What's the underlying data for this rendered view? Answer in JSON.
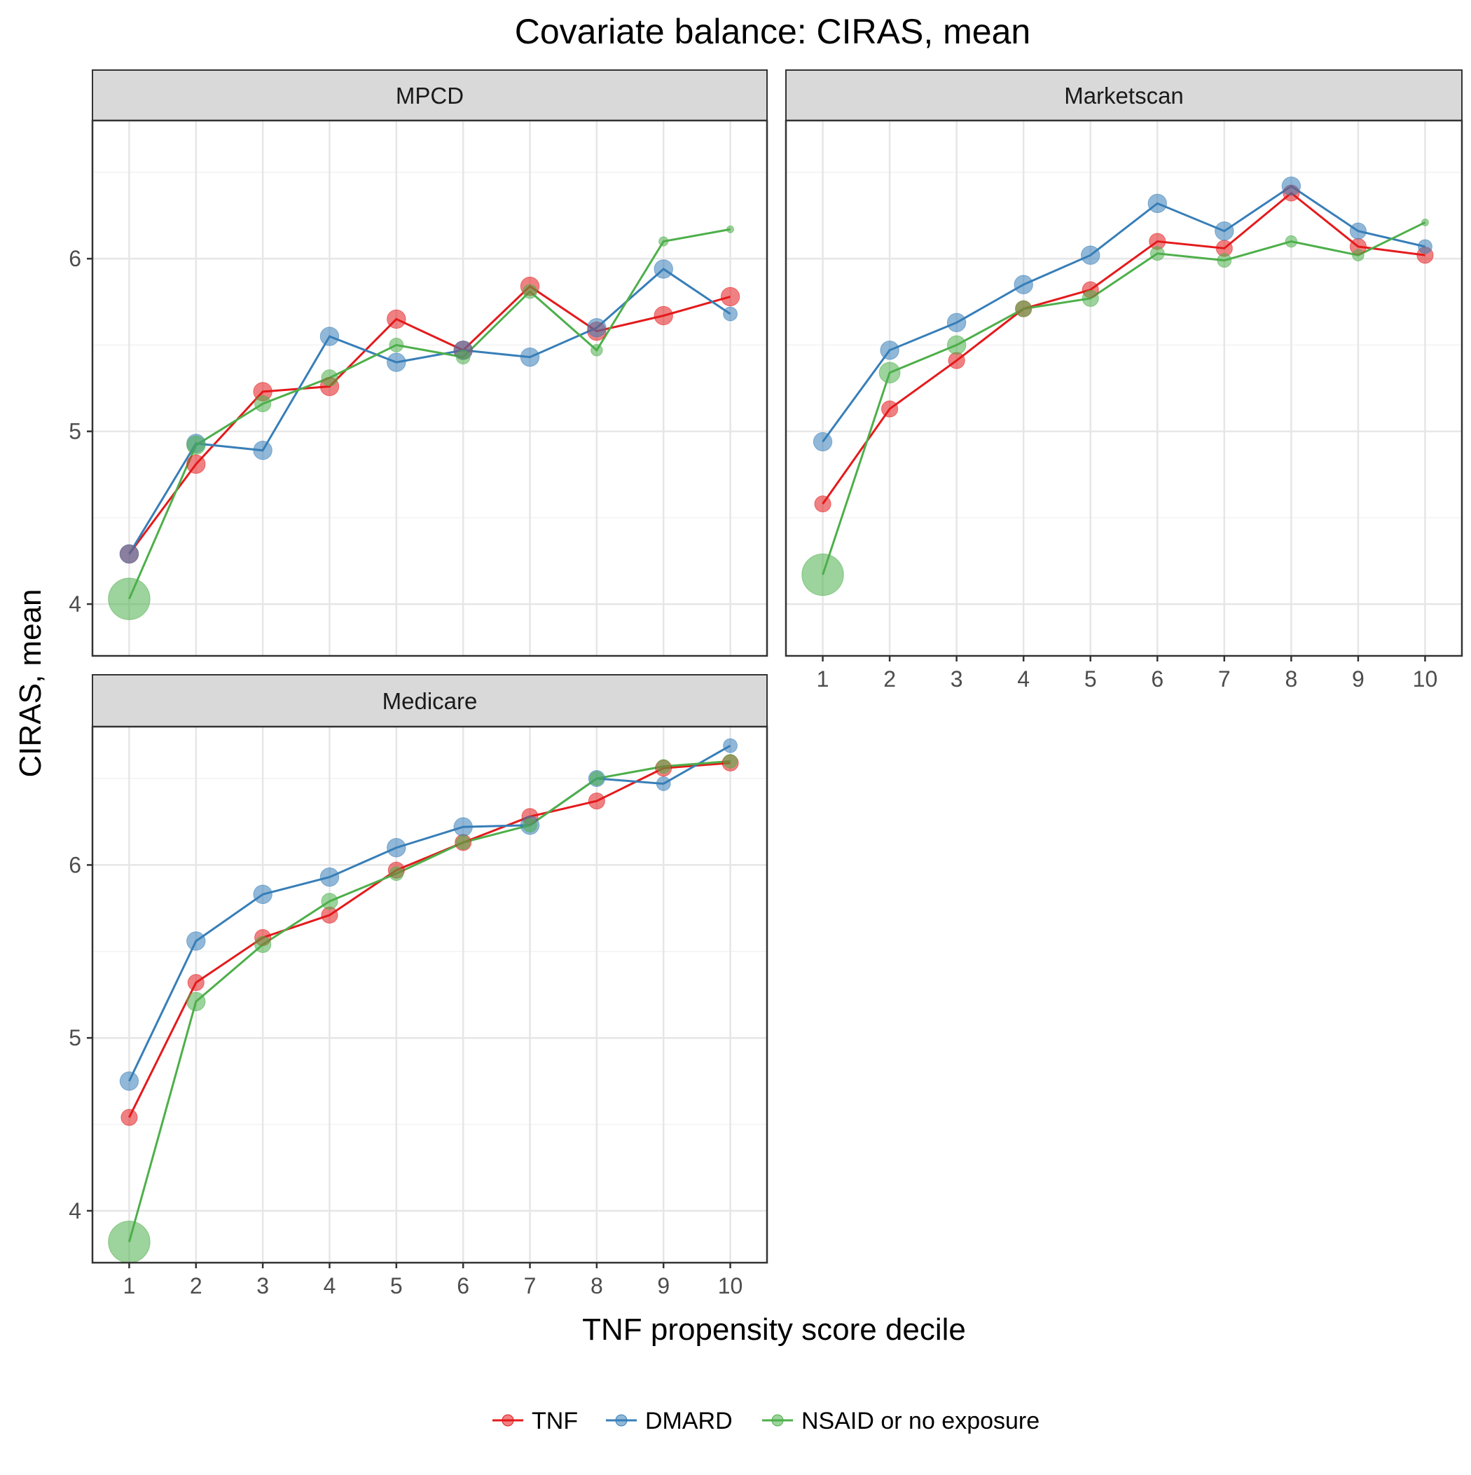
{
  "chart_data": {
    "type": "line",
    "title": "Covariate balance: CIRAS, mean",
    "xlabel": "TNF propensity score decile",
    "ylabel": "CIRAS, mean",
    "x": [
      1,
      2,
      3,
      4,
      5,
      6,
      7,
      8,
      9,
      10
    ],
    "x_tick_labels": [
      "1",
      "2",
      "3",
      "4",
      "5",
      "6",
      "7",
      "8",
      "9",
      "10"
    ],
    "ylim": [
      3.7,
      6.8
    ],
    "y_ticks": [
      4,
      5,
      6
    ],
    "y_tick_labels": [
      "4",
      "5",
      "6"
    ],
    "grid": true,
    "legend_position": "bottom",
    "series_colors": {
      "TNF": "#e41a1c",
      "DMARD": "#377eb8",
      "NSAID or no exposure": "#4daf4a"
    },
    "legend": [
      "TNF",
      "DMARD",
      "NSAID or no exposure"
    ],
    "panels": [
      {
        "label": "MPCD",
        "series": [
          {
            "name": "TNF",
            "values": [
              4.29,
              4.81,
              5.23,
              5.26,
              5.65,
              5.47,
              5.84,
              5.58,
              5.67,
              5.78
            ],
            "sizes": [
              4,
              4,
              4,
              4,
              4,
              4,
              4,
              4,
              4,
              4
            ]
          },
          {
            "name": "DMARD",
            "values": [
              4.29,
              4.93,
              4.89,
              5.55,
              5.4,
              5.47,
              5.43,
              5.6,
              5.94,
              5.68
            ],
            "sizes": [
              4,
              4,
              4,
              4,
              4,
              4,
              4,
              4,
              4,
              3
            ]
          },
          {
            "name": "NSAID or no exposure",
            "values": [
              4.03,
              4.92,
              5.16,
              5.31,
              5.5,
              5.43,
              5.81,
              5.47,
              6.1,
              6.17
            ],
            "sizes": [
              9,
              4,
              3.5,
              3.5,
              3,
              3,
              3,
              2.5,
              2,
              1.5
            ]
          }
        ]
      },
      {
        "label": "Marketscan",
        "series": [
          {
            "name": "TNF",
            "values": [
              4.58,
              5.13,
              5.41,
              5.71,
              5.82,
              6.1,
              6.06,
              6.38,
              6.07,
              6.02
            ],
            "sizes": [
              3.5,
              3.5,
              3.5,
              3.5,
              3.5,
              3.5,
              3.5,
              3.5,
              3.5,
              3.5
            ]
          },
          {
            "name": "DMARD",
            "values": [
              4.94,
              5.47,
              5.63,
              5.85,
              6.02,
              6.32,
              6.16,
              6.42,
              6.16,
              6.07
            ],
            "sizes": [
              4,
              4,
              4,
              4,
              4,
              4,
              4,
              4,
              3.5,
              3
            ]
          },
          {
            "name": "NSAID or no exposure",
            "values": [
              4.17,
              5.34,
              5.5,
              5.71,
              5.77,
              6.03,
              5.99,
              6.1,
              6.02,
              6.21
            ],
            "sizes": [
              9,
              4.5,
              4,
              3.5,
              3.5,
              3,
              3,
              2.5,
              2.5,
              1.5
            ]
          }
        ]
      },
      {
        "label": "Medicare",
        "series": [
          {
            "name": "TNF",
            "values": [
              4.54,
              5.32,
              5.58,
              5.71,
              5.97,
              6.13,
              6.28,
              6.37,
              6.56,
              6.59
            ],
            "sizes": [
              3.5,
              3.5,
              3.5,
              3.5,
              3.5,
              3.5,
              3.5,
              3.5,
              3.5,
              3.5
            ]
          },
          {
            "name": "DMARD",
            "values": [
              4.75,
              5.56,
              5.83,
              5.93,
              6.1,
              6.22,
              6.23,
              6.5,
              6.47,
              6.69
            ],
            "sizes": [
              4,
              4,
              4,
              4,
              4,
              4,
              4,
              3.5,
              3,
              3
            ]
          },
          {
            "name": "NSAID or no exposure",
            "values": [
              3.82,
              5.21,
              5.54,
              5.79,
              5.95,
              6.13,
              6.23,
              6.5,
              6.57,
              6.6
            ],
            "sizes": [
              9,
              4,
              3.5,
              3.5,
              3,
              3,
              3,
              3,
              3,
              3
            ]
          }
        ]
      }
    ]
  }
}
